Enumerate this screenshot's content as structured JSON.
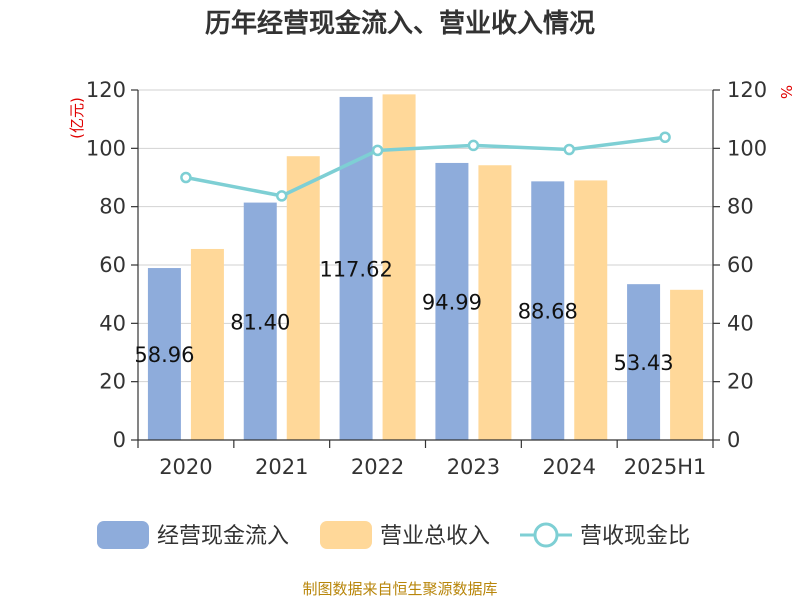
{
  "chart_data": {
    "type": "bar",
    "title": "历年经营现金流入、营业收入情况",
    "y_left_unit": "(亿元)",
    "y_right_unit": "%",
    "categories": [
      "2020",
      "2021",
      "2022",
      "2023",
      "2024",
      "2025H1"
    ],
    "ylim_left": [
      0,
      120
    ],
    "ylim_right": [
      0,
      120
    ],
    "yticks_left": [
      "0",
      "20",
      "40",
      "60",
      "80",
      "100",
      "120"
    ],
    "yticks_right": [
      "0",
      "20",
      "40",
      "60",
      "80",
      "100",
      "120"
    ],
    "grid": true,
    "legend_position": "bottom",
    "series": [
      {
        "name": "经营现金流入",
        "kind": "bar",
        "axis": "left",
        "color": "#8eacdb",
        "values": [
          58.96,
          81.4,
          117.62,
          94.99,
          88.68,
          53.43
        ],
        "labels": [
          "58.96",
          "81.40",
          "117.62",
          "94.99",
          "88.68",
          "53.43"
        ]
      },
      {
        "name": "营业总收入",
        "kind": "bar",
        "axis": "left",
        "color": "#ffd899",
        "values": [
          65.5,
          97.3,
          118.5,
          94.2,
          89.0,
          51.5
        ]
      },
      {
        "name": "营收现金比",
        "kind": "line",
        "axis": "right",
        "color": "#7ecfd4",
        "values": [
          90.0,
          83.7,
          99.3,
          101.0,
          99.6,
          103.8
        ]
      }
    ]
  },
  "source": "制图数据来自恒生聚源数据库"
}
